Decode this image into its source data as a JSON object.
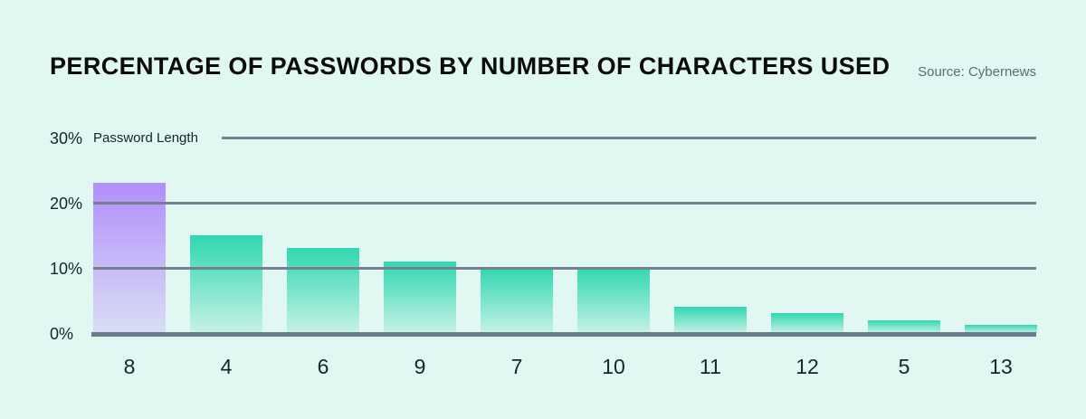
{
  "header": {
    "title": "PERCENTAGE OF PASSWORDS BY NUMBER OF CHARACTERS USED",
    "source": "Source: Cybernews"
  },
  "chart_data": {
    "type": "bar",
    "title": "PERCENTAGE OF PASSWORDS BY NUMBER OF CHARACTERS USED",
    "source": "Source: Cybernews",
    "xlabel": "",
    "ylabel": "",
    "annotation": "Password Length",
    "categories": [
      "8",
      "4",
      "6",
      "9",
      "7",
      "10",
      "11",
      "12",
      "5",
      "13"
    ],
    "values": [
      23,
      15,
      13,
      11,
      10,
      10,
      4,
      3,
      2,
      1.2
    ],
    "y_ticks": [
      30,
      20,
      10,
      0
    ],
    "y_tick_labels": [
      "30%",
      "20%",
      "10%",
      "0%"
    ],
    "ylim": [
      0,
      30
    ],
    "grid": true,
    "legend_position": "none",
    "highlight_category": "8",
    "colors": {
      "background": "#e0f7f2",
      "bar_top": "#30d7b0",
      "bar_bottom": "#c6f2e6",
      "highlight_bar_top": "#b18efc",
      "highlight_bar_bottom": "#d9def4",
      "gridline": "#73808f",
      "axis": "#6b7b8d",
      "title_color": "#0c0c0c",
      "source_color": "#5e6c74",
      "tick_label_color": "#16242d"
    }
  }
}
